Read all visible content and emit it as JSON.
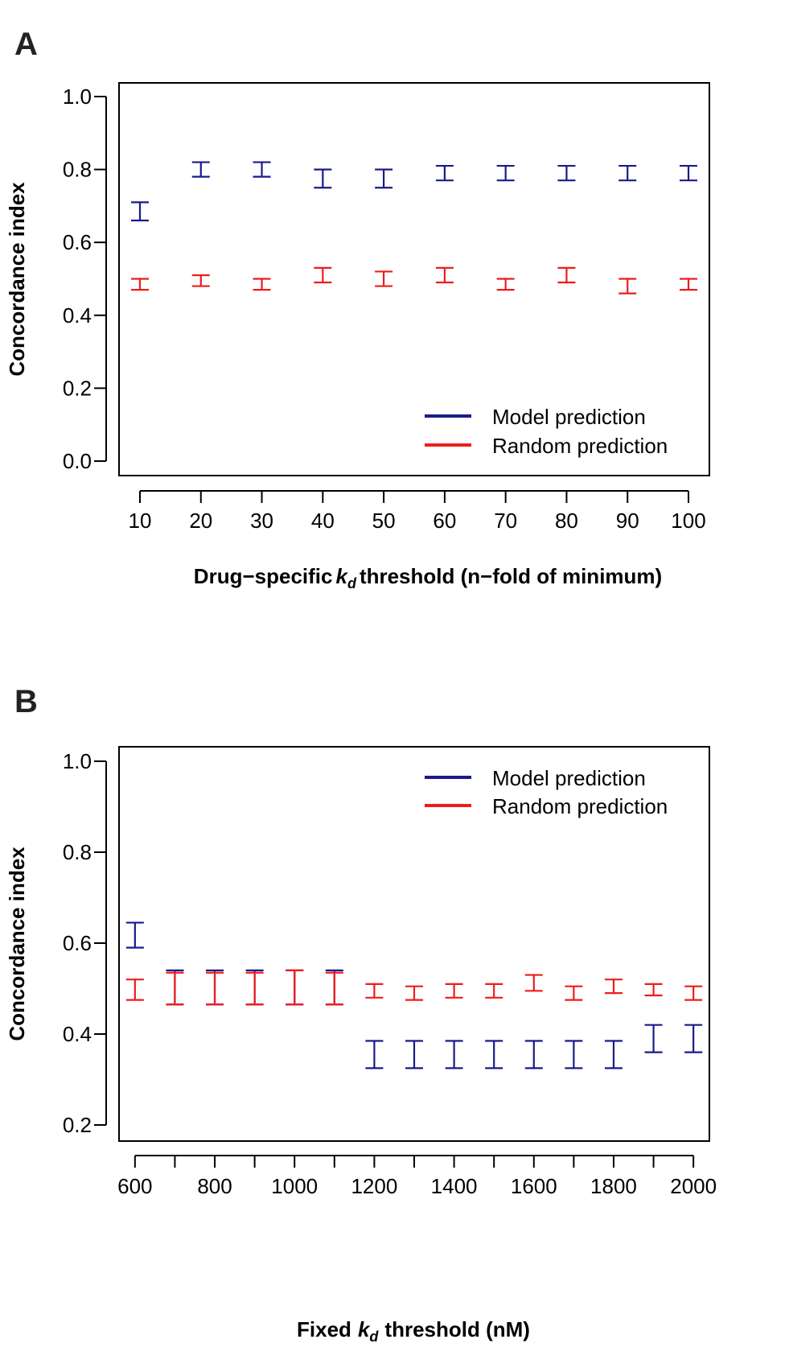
{
  "colors": {
    "model": "#1a1a8c",
    "random": "#ee1c1c",
    "axis": "#000000"
  },
  "chart_data": [
    {
      "panel_label": "A",
      "type": "errorbar",
      "x_is_categorical": true,
      "categories": [
        "10",
        "20",
        "30",
        "40",
        "50",
        "60",
        "70",
        "80",
        "90",
        "100"
      ],
      "xlabel_parts": [
        "Drug−specific",
        "k",
        "d",
        "threshold (n−fold of minimum)"
      ],
      "ylabel": "Concordance index",
      "ylim": [
        0.0,
        1.0
      ],
      "yticks": [
        "0.0",
        "0.2",
        "0.4",
        "0.6",
        "0.8",
        "1.0"
      ],
      "legend_position": "bottom-right",
      "series": [
        {
          "name": "Model prediction",
          "color_key": "model",
          "lower": [
            0.66,
            0.78,
            0.78,
            0.75,
            0.75,
            0.77,
            0.77,
            0.77,
            0.77,
            0.77
          ],
          "upper": [
            0.71,
            0.82,
            0.82,
            0.8,
            0.8,
            0.81,
            0.81,
            0.81,
            0.81,
            0.81
          ]
        },
        {
          "name": "Random prediction",
          "color_key": "random",
          "lower": [
            0.47,
            0.48,
            0.47,
            0.49,
            0.48,
            0.49,
            0.47,
            0.49,
            0.46,
            0.47
          ],
          "upper": [
            0.5,
            0.51,
            0.5,
            0.53,
            0.52,
            0.53,
            0.5,
            0.53,
            0.5,
            0.5
          ]
        }
      ]
    },
    {
      "panel_label": "B",
      "type": "errorbar",
      "x": [
        600,
        700,
        800,
        900,
        1000,
        1100,
        1200,
        1300,
        1400,
        1500,
        1600,
        1700,
        1800,
        1900,
        2000
      ],
      "xticks": [
        "600",
        "800",
        "1000",
        "1200",
        "1400",
        "1600",
        "1800",
        "2000"
      ],
      "xtick_values": [
        600,
        800,
        1000,
        1200,
        1400,
        1600,
        1800,
        2000
      ],
      "xlim": [
        560,
        2040
      ],
      "xlabel_parts": [
        "Fixed",
        "k",
        "d",
        "threshold (nM)"
      ],
      "ylabel": "Concordance index",
      "ylim": [
        0.2,
        1.0
      ],
      "yticks": [
        "0.2",
        "0.4",
        "0.6",
        "0.8",
        "1.0"
      ],
      "legend_position": "top-right",
      "series": [
        {
          "name": "Model prediction",
          "color_key": "model",
          "lower": [
            0.59,
            0.465,
            0.465,
            0.465,
            0.465,
            0.465,
            0.325,
            0.325,
            0.325,
            0.325,
            0.325,
            0.325,
            0.325,
            0.36,
            0.36
          ],
          "upper": [
            0.645,
            0.54,
            0.54,
            0.54,
            0.54,
            0.54,
            0.385,
            0.385,
            0.385,
            0.385,
            0.385,
            0.385,
            0.385,
            0.42,
            0.42
          ]
        },
        {
          "name": "Random prediction",
          "color_key": "random",
          "lower": [
            0.475,
            0.465,
            0.465,
            0.465,
            0.465,
            0.465,
            0.48,
            0.475,
            0.48,
            0.48,
            0.495,
            0.475,
            0.49,
            0.485,
            0.475
          ],
          "upper": [
            0.52,
            0.535,
            0.535,
            0.535,
            0.54,
            0.535,
            0.51,
            0.505,
            0.51,
            0.51,
            0.53,
            0.505,
            0.52,
            0.51,
            0.505
          ]
        }
      ]
    }
  ]
}
